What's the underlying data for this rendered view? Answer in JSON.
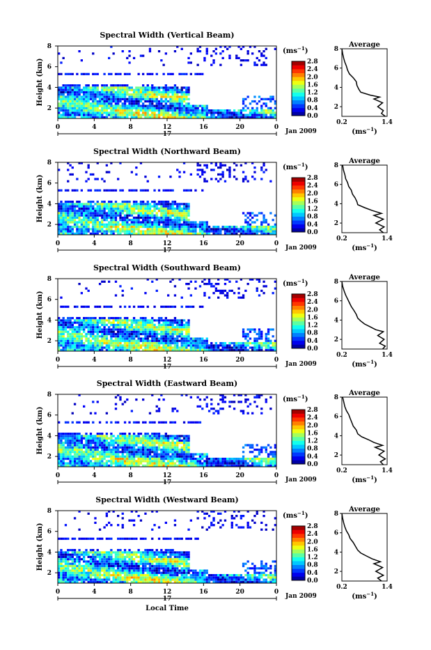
{
  "chart_data": [
    {
      "type": "heatmap",
      "title": "Spectral Width (Vertical Beam)",
      "ylabel": "Height (km)",
      "yticks": [
        "2",
        "4",
        "6",
        "8"
      ],
      "xticks": [
        "0",
        "4",
        "8",
        "12",
        "16",
        "20",
        "0"
      ],
      "xlim": [
        0,
        24
      ],
      "ylim": [
        1,
        8
      ],
      "date_day": "17",
      "date_month": "Jan 2009",
      "colorbar_unit": "(ms",
      "colorbar_unit_exp": "−1",
      "colorbar_unit_close": ")",
      "colorbar_ticks": [
        "0.0",
        "0.4",
        "0.8",
        "1.2",
        "1.6",
        "2.0",
        "2.4",
        "2.8"
      ],
      "clim": [
        0,
        2.8
      ],
      "average_title": "Average",
      "average_xticks": [
        "0.2",
        "1.4"
      ],
      "average_yticks": [
        "2",
        "4",
        "6",
        "8"
      ],
      "average_xlabel": "(ms",
      "average_xlabel_exp": "−1",
      "average_xlabel_close": ")",
      "average_xlim": [
        0.2,
        1.4
      ],
      "average_profile": {
        "height": [
          1.0,
          1.3,
          1.6,
          2.0,
          2.4,
          2.8,
          3.0,
          3.2,
          3.5,
          3.8,
          4.2,
          4.6,
          5.0,
          5.4,
          5.8,
          6.2,
          6.6,
          7.0,
          7.5,
          8.0
        ],
        "value": [
          1.35,
          1.25,
          1.3,
          1.15,
          1.28,
          1.05,
          1.2,
          0.95,
          0.7,
          0.65,
          0.6,
          0.58,
          0.5,
          0.4,
          0.35,
          0.32,
          0.28,
          0.25,
          0.22,
          0.2
        ]
      }
    },
    {
      "type": "heatmap",
      "title": "Spectral Width (Northward Beam)",
      "ylabel": "Height (km)",
      "yticks": [
        "2",
        "4",
        "6",
        "8"
      ],
      "xticks": [
        "0",
        "4",
        "8",
        "12",
        "16",
        "20",
        "0"
      ],
      "xlim": [
        0,
        24
      ],
      "ylim": [
        1,
        8
      ],
      "date_day": "17",
      "date_month": "Jan 2009",
      "colorbar_unit": "(ms",
      "colorbar_unit_exp": "−1",
      "colorbar_unit_close": ")",
      "colorbar_ticks": [
        "0.0",
        "0.4",
        "0.8",
        "1.2",
        "1.6",
        "2.0",
        "2.4",
        "2.8"
      ],
      "clim": [
        0,
        2.8
      ],
      "average_title": "Average",
      "average_xticks": [
        "0.2",
        "1.4"
      ],
      "average_yticks": [
        "2",
        "4",
        "6",
        "8"
      ],
      "average_xlabel": "(ms",
      "average_xlabel_exp": "−1",
      "average_xlabel_close": ")",
      "average_xlim": [
        0.2,
        1.4
      ],
      "average_profile": {
        "height": [
          1.0,
          1.3,
          1.6,
          2.0,
          2.4,
          2.8,
          3.0,
          3.3,
          3.6,
          3.9,
          4.2,
          4.6,
          5.0,
          5.4,
          5.8,
          6.2,
          6.6,
          7.0,
          7.5,
          8.0
        ],
        "value": [
          1.3,
          1.2,
          1.32,
          1.1,
          1.3,
          1.05,
          1.25,
          1.0,
          0.8,
          0.62,
          0.6,
          0.55,
          0.48,
          0.45,
          0.38,
          0.35,
          0.3,
          0.28,
          0.24,
          0.22
        ]
      }
    },
    {
      "type": "heatmap",
      "title": "Spectral Width (Southward Beam)",
      "ylabel": "Height (km)",
      "yticks": [
        "2",
        "4",
        "6",
        "8"
      ],
      "xticks": [
        "0",
        "4",
        "8",
        "12",
        "16",
        "20",
        "0"
      ],
      "xlim": [
        0,
        24
      ],
      "ylim": [
        1,
        8
      ],
      "date_day": "17",
      "date_month": "Jan 2009",
      "colorbar_unit": "(ms",
      "colorbar_unit_exp": "−1",
      "colorbar_unit_close": ")",
      "colorbar_ticks": [
        "0.0",
        "0.4",
        "0.8",
        "1.2",
        "1.6",
        "2.0",
        "2.4",
        "2.8"
      ],
      "clim": [
        0,
        2.8
      ],
      "average_title": "Average",
      "average_xticks": [
        "0.2",
        "1.4"
      ],
      "average_yticks": [
        "2",
        "4",
        "6",
        "8"
      ],
      "average_xlabel": "(ms",
      "average_xlabel_exp": "−1",
      "average_xlabel_close": ")",
      "average_xlim": [
        0.2,
        1.4
      ],
      "average_profile": {
        "height": [
          1.0,
          1.3,
          1.6,
          2.0,
          2.4,
          2.8,
          3.0,
          3.3,
          3.6,
          3.9,
          4.2,
          4.6,
          5.0,
          5.4,
          5.8,
          6.2,
          6.6,
          7.0,
          7.5,
          8.0
        ],
        "value": [
          1.28,
          1.35,
          1.2,
          1.32,
          1.15,
          1.3,
          1.1,
          0.95,
          0.8,
          0.7,
          0.62,
          0.58,
          0.52,
          0.45,
          0.4,
          0.35,
          0.3,
          0.26,
          0.22,
          0.2
        ]
      }
    },
    {
      "type": "heatmap",
      "title": "Spectral Width (Eastward Beam)",
      "ylabel": "Height (km)",
      "yticks": [
        "2",
        "4",
        "6",
        "8"
      ],
      "xticks": [
        "0",
        "4",
        "8",
        "12",
        "16",
        "20",
        "0"
      ],
      "xlim": [
        0,
        24
      ],
      "ylim": [
        1,
        8
      ],
      "date_day": "17",
      "date_month": "Jan 2009",
      "colorbar_unit": "(ms",
      "colorbar_unit_exp": "−1",
      "colorbar_unit_close": ")",
      "colorbar_ticks": [
        "0.0",
        "0.4",
        "0.8",
        "1.2",
        "1.6",
        "2.0",
        "2.4",
        "2.8"
      ],
      "clim": [
        0,
        2.8
      ],
      "average_title": "Average",
      "average_xticks": [
        "0.2",
        "1.4"
      ],
      "average_yticks": [
        "2",
        "4",
        "6",
        "8"
      ],
      "average_xlabel": "(ms",
      "average_xlabel_exp": "−1",
      "average_xlabel_close": ")",
      "average_xlim": [
        0.2,
        1.4
      ],
      "average_profile": {
        "height": [
          1.0,
          1.3,
          1.6,
          2.0,
          2.4,
          2.8,
          3.0,
          3.3,
          3.6,
          3.9,
          4.2,
          4.6,
          5.0,
          5.4,
          5.8,
          6.2,
          6.6,
          7.0,
          7.5,
          8.0
        ],
        "value": [
          1.3,
          1.22,
          1.35,
          1.18,
          1.32,
          1.08,
          1.28,
          1.05,
          0.9,
          0.72,
          0.62,
          0.58,
          0.5,
          0.46,
          0.42,
          0.38,
          0.32,
          0.28,
          0.25,
          0.22
        ]
      }
    },
    {
      "type": "heatmap",
      "title": "Spectral Width (Westward Beam)",
      "ylabel": "Height (km)",
      "yticks": [
        "2",
        "4",
        "6",
        "8"
      ],
      "xticks": [
        "0",
        "4",
        "8",
        "12",
        "16",
        "20",
        "0"
      ],
      "xlim": [
        0,
        24
      ],
      "ylim": [
        1,
        8
      ],
      "date_day": "17",
      "date_month": "Jan 2009",
      "xlabel": "Local Time",
      "colorbar_unit": "(ms",
      "colorbar_unit_exp": "−1",
      "colorbar_unit_close": ")",
      "colorbar_ticks": [
        "0.0",
        "0.4",
        "0.8",
        "1.2",
        "1.6",
        "2.0",
        "2.4",
        "2.8"
      ],
      "clim": [
        0,
        2.8
      ],
      "average_title": "Average",
      "average_xticks": [
        "0.2",
        "1.4"
      ],
      "average_yticks": [
        "2",
        "4",
        "6",
        "8"
      ],
      "average_xlabel": "(ms",
      "average_xlabel_exp": "−1",
      "average_xlabel_close": ")",
      "average_xlim": [
        0.2,
        1.4
      ],
      "average_profile": {
        "height": [
          1.0,
          1.3,
          1.6,
          2.0,
          2.4,
          2.8,
          3.0,
          3.3,
          3.6,
          3.9,
          4.2,
          4.6,
          5.0,
          5.4,
          5.8,
          6.2,
          6.6,
          7.0,
          7.5,
          8.0
        ],
        "value": [
          1.25,
          1.15,
          1.3,
          1.1,
          1.28,
          1.05,
          1.22,
          1.0,
          0.85,
          0.7,
          0.62,
          0.56,
          0.5,
          0.42,
          0.38,
          0.32,
          0.28,
          0.25,
          0.22,
          0.2
        ]
      }
    }
  ]
}
